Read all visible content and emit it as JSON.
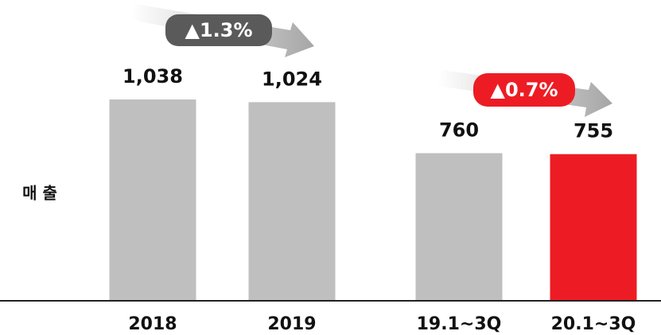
{
  "chart_data": {
    "type": "bar",
    "ylabel": "매 출",
    "categories": [
      "2018",
      "2019",
      "19.1~3Q",
      "20.1~3Q"
    ],
    "values": [
      1038,
      1024,
      760,
      755
    ],
    "value_labels": [
      "1,038",
      "1,024",
      "760",
      "755"
    ],
    "colors": [
      "#bfbfbf",
      "#bfbfbf",
      "#bfbfbf",
      "#ed1c24"
    ],
    "annotations": [
      {
        "text": "▲1.3%",
        "color": "#5a5a5a"
      },
      {
        "text": "▲0.7%",
        "color": "#ed1c24"
      }
    ]
  }
}
